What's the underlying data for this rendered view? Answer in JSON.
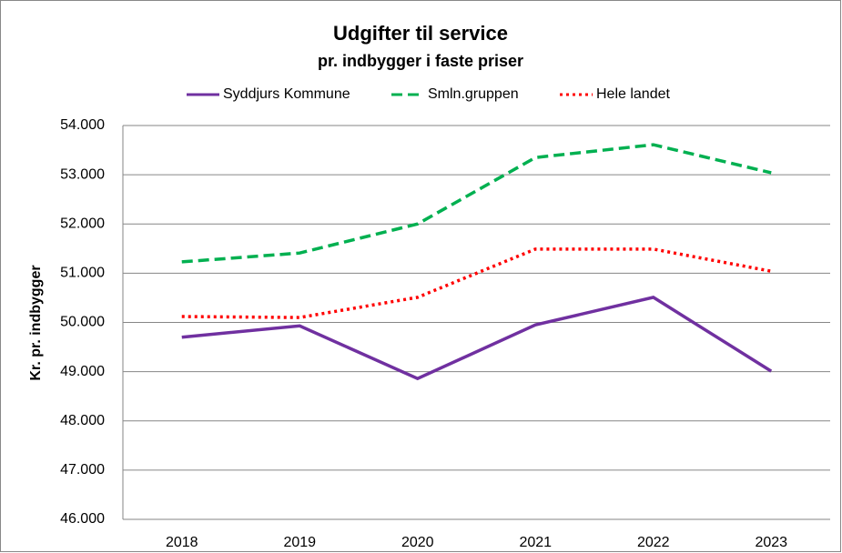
{
  "chart_data": {
    "type": "line",
    "title": "Udgifter til service",
    "subtitle": "pr. indbygger i faste priser",
    "ylabel": "Kr. pr. indbygger",
    "categories": [
      "2018",
      "2019",
      "2020",
      "2021",
      "2022",
      "2023"
    ],
    "series": [
      {
        "name": "Syddjurs Kommune",
        "color": "#7030a0",
        "style": "solid",
        "values": [
          49700,
          49930,
          48860,
          49950,
          50510,
          49010
        ]
      },
      {
        "name": "Smln.gruppen",
        "color": "#00b050",
        "style": "dashed",
        "values": [
          51230,
          51410,
          52000,
          53350,
          53610,
          53040
        ]
      },
      {
        "name": "Hele landet",
        "color": "#ff0000",
        "style": "dotted",
        "values": [
          50120,
          50100,
          50510,
          51490,
          51490,
          51040
        ]
      }
    ],
    "ylim": [
      46000,
      54000
    ],
    "yticks": [
      {
        "value": 46000,
        "label": "46.000"
      },
      {
        "value": 47000,
        "label": "47.000"
      },
      {
        "value": 48000,
        "label": "48.000"
      },
      {
        "value": 49000,
        "label": "49.000"
      },
      {
        "value": 50000,
        "label": "50.000"
      },
      {
        "value": 51000,
        "label": "51.000"
      },
      {
        "value": 52000,
        "label": "52.000"
      },
      {
        "value": 53000,
        "label": "53.000"
      },
      {
        "value": 54000,
        "label": "54.000"
      }
    ],
    "grid": true,
    "legend": "top"
  }
}
